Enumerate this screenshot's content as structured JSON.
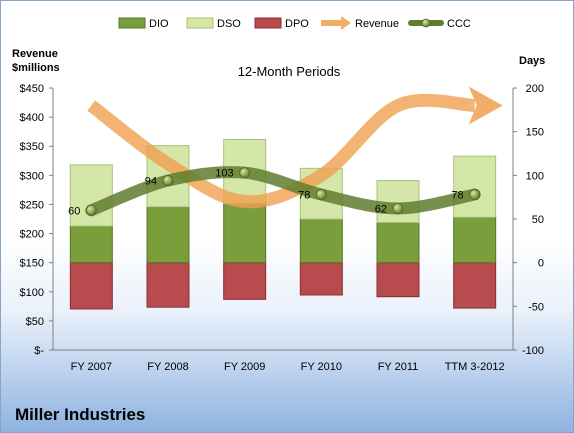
{
  "chart_data": {
    "type": "bar",
    "title": "12-Month Periods",
    "left_axis_label_line1": "Revenue",
    "left_axis_label_line2": "$millions",
    "right_axis_label": "Days",
    "categories": [
      "FY 2007",
      "FY 2008",
      "FY 2009",
      "FY 2010",
      "FY 2011",
      "TTM 3-2012"
    ],
    "left_ylim": [
      0,
      450
    ],
    "left_ticks": [
      "$-",
      "$50",
      "$100",
      "$150",
      "$200",
      "$250",
      "$300",
      "$350",
      "$400",
      "$450"
    ],
    "right_ylim": [
      -100,
      200
    ],
    "right_ticks": [
      "-100",
      "-50",
      "0",
      "50",
      "100",
      "150",
      "200"
    ],
    "stacking": "DIO and DSO stack upward from 0 days; DPO extends downward from 0 days",
    "series": [
      {
        "name": "DIO",
        "axis": "right",
        "kind": "stacked-bar",
        "values": [
          42,
          64,
          68,
          50,
          46,
          52
        ]
      },
      {
        "name": "DSO",
        "axis": "right",
        "kind": "stacked-bar",
        "values": [
          70,
          70,
          73,
          58,
          48,
          70
        ]
      },
      {
        "name": "DPO",
        "axis": "right",
        "kind": "bar-negative",
        "values": [
          -53,
          -51,
          -42,
          -37,
          -39,
          -52
        ]
      },
      {
        "name": "Revenue",
        "axis": "left",
        "kind": "line",
        "values": [
          420,
          320,
          255,
          300,
          420,
          420
        ]
      },
      {
        "name": "CCC",
        "axis": "right",
        "kind": "line",
        "values": [
          60,
          94,
          103,
          78,
          62,
          78
        ]
      }
    ],
    "data_labels": [
      "60",
      "94",
      "103",
      "78",
      "62",
      "78"
    ],
    "legend_position": "top",
    "grid": false,
    "colors": {
      "DIO": "#7a9e3c",
      "DSO": "#d4e6a8",
      "DPO": "#b74b4e",
      "Revenue": "#f0a04f",
      "CCC": "#5f7d2f"
    }
  },
  "company": "Miller Industries"
}
